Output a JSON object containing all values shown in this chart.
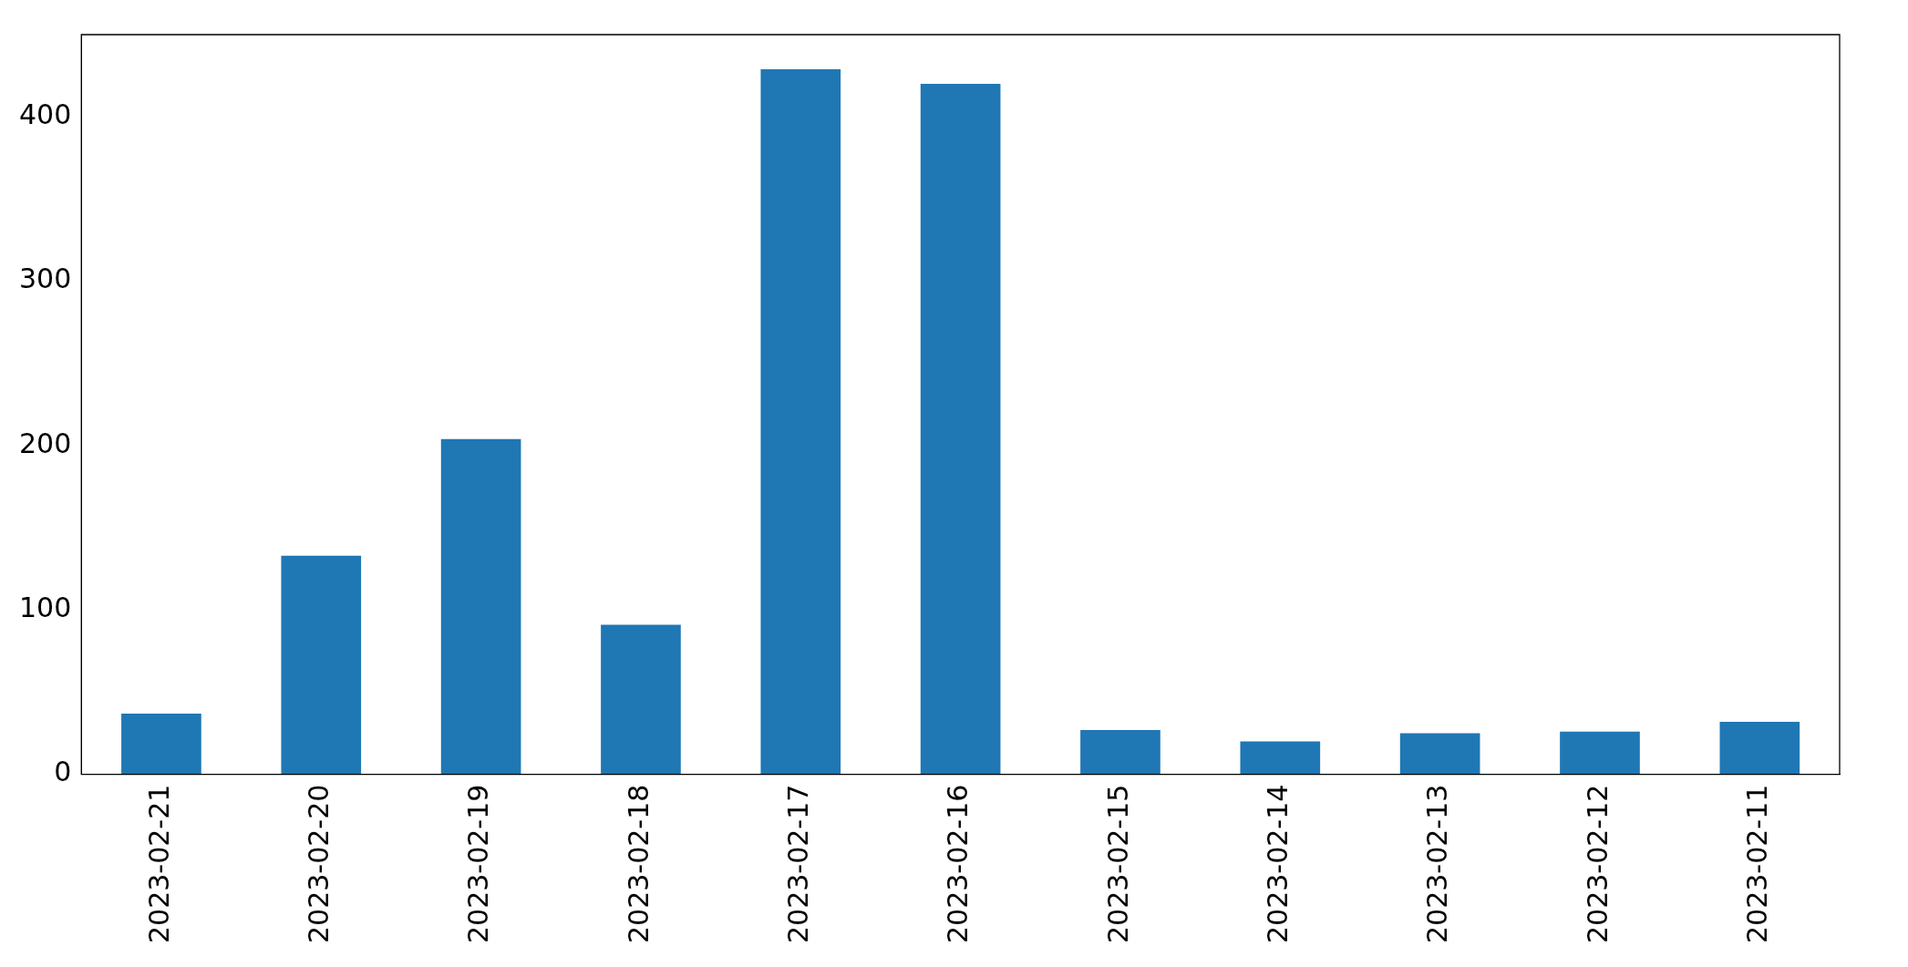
{
  "chart_data": {
    "type": "bar",
    "categories": [
      "2023-02-21",
      "2023-02-20",
      "2023-02-19",
      "2023-02-18",
      "2023-02-17",
      "2023-02-16",
      "2023-02-15",
      "2023-02-14",
      "2023-02-13",
      "2023-02-12",
      "2023-02-11"
    ],
    "values": [
      37,
      133,
      204,
      91,
      429,
      420,
      27,
      20,
      25,
      26,
      32
    ],
    "color": "#1f77b4",
    "ylim": [
      0,
      450
    ],
    "yticks": [
      0,
      100,
      200,
      300,
      400
    ],
    "grid": false,
    "legend": false
  }
}
